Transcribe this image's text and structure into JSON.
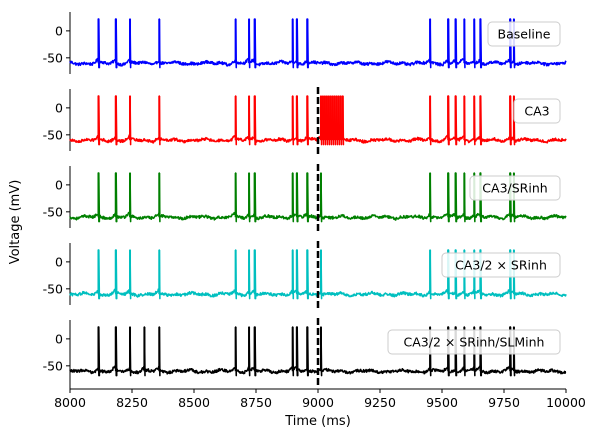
{
  "chart_data": {
    "type": "line",
    "xlabel": "Time (ms)",
    "ylabel": "Voltage (mV)",
    "xlim": [
      8000,
      10000
    ],
    "ylim": [
      -80,
      35
    ],
    "x_ticks": [
      "8000",
      "8250",
      "8500",
      "8750",
      "9000",
      "9250",
      "9500",
      "9750",
      "10000"
    ],
    "y_ticks": [
      "0",
      "-50"
    ],
    "vline_x": 9000,
    "baseline_mV": -60,
    "spike_peak_mV": 22,
    "panels": [
      {
        "name": "Baseline",
        "color": "#0000ff",
        "show_vline": false,
        "spike_times": [
          8115,
          8185,
          8242,
          8360,
          8668,
          8722,
          8745,
          8898,
          8915,
          8957,
          9452,
          9525,
          9555,
          9590,
          9630,
          9655,
          9775,
          9790
        ]
      },
      {
        "name": "CA3",
        "color": "#ff0000",
        "show_vline": true,
        "spike_times": [
          8115,
          8185,
          8242,
          8360,
          8668,
          8722,
          8745,
          8898,
          8915,
          8957,
          9012,
          9020,
          9028,
          9036,
          9044,
          9052,
          9060,
          9068,
          9076,
          9084,
          9092,
          9100,
          9452,
          9525,
          9555,
          9590,
          9630,
          9655,
          9775,
          9790
        ]
      },
      {
        "name": "CA3/SRinh",
        "color": "#008000",
        "show_vline": true,
        "spike_times": [
          8115,
          8185,
          8242,
          8360,
          8668,
          8722,
          8745,
          8898,
          8915,
          8957,
          9012,
          9452,
          9525,
          9555,
          9590,
          9630,
          9655,
          9775,
          9790
        ]
      },
      {
        "name": "CA3/2 × SRinh",
        "color": "#00bfbf",
        "show_vline": true,
        "spike_times": [
          8115,
          8185,
          8242,
          8360,
          8668,
          8722,
          8745,
          8898,
          8915,
          8957,
          9012,
          9452,
          9525,
          9555,
          9590,
          9630,
          9655,
          9775,
          9790
        ]
      },
      {
        "name": "CA3/2 × SRinh/SLMinh",
        "color": "#000000",
        "show_vline": true,
        "spike_times": [
          8115,
          8185,
          8242,
          8300,
          8360,
          8668,
          8722,
          8745,
          8898,
          8915,
          8957,
          9012,
          9452,
          9525,
          9555,
          9590,
          9630,
          9655,
          9775,
          9790
        ]
      }
    ]
  }
}
